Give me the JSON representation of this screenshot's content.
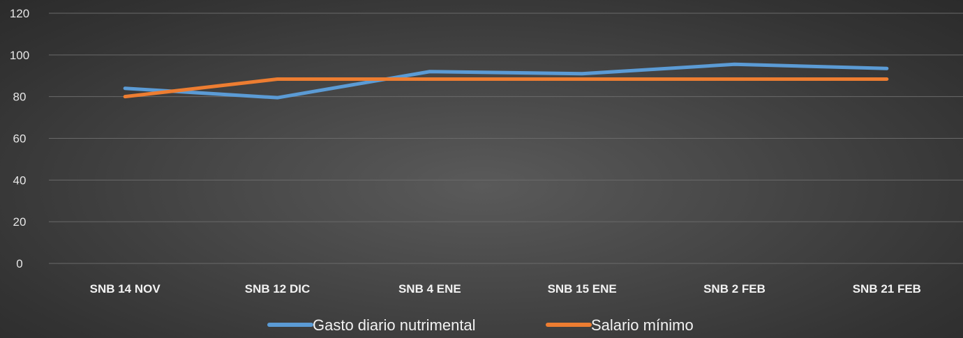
{
  "chart_data": {
    "type": "line",
    "title": "",
    "xlabel": "",
    "ylabel": "",
    "categories": [
      "SNB 14 NOV",
      "SNB 12 DIC",
      "SNB 4 ENE",
      "SNB 15 ENE",
      "SNB 2 FEB",
      "SNB 21 FEB"
    ],
    "ylim": [
      0,
      120
    ],
    "yticks": [
      "0",
      "20",
      "40",
      "60",
      "80",
      "100",
      "120"
    ],
    "grid": true,
    "legend_position": "bottom",
    "series": [
      {
        "name": "Gasto diario nutrimental",
        "color": "#5b9bd5",
        "values": [
          84,
          79.5,
          92,
          91,
          95.5,
          93.5
        ]
      },
      {
        "name": "Salario mínimo",
        "color": "#ed7d31",
        "values": [
          80,
          88.4,
          88.4,
          88.4,
          88.4,
          88.4
        ]
      }
    ]
  }
}
